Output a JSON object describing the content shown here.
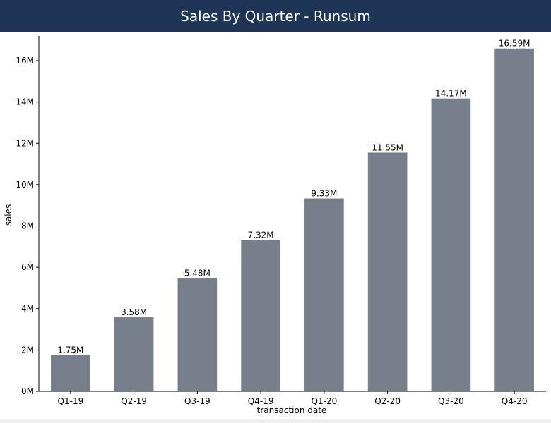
{
  "header": {
    "title": "Sales By Quarter - Runsum"
  },
  "colors": {
    "header_bg": "#1e3557",
    "bar": "#787f8c",
    "axis": "#000000"
  },
  "chart_data": {
    "type": "bar",
    "title": "Sales By Quarter - Runsum",
    "xlabel": "transaction date",
    "ylabel": "sales",
    "categories": [
      "Q1-19",
      "Q2-19",
      "Q3-19",
      "Q4-19",
      "Q1-20",
      "Q2-20",
      "Q3-20",
      "Q4-20"
    ],
    "values": [
      1.75,
      3.58,
      5.48,
      7.32,
      9.33,
      11.55,
      14.17,
      16.59
    ],
    "value_labels": [
      "1.75M",
      "3.58M",
      "5.48M",
      "7.32M",
      "9.33M",
      "11.55M",
      "14.17M",
      "16.59M"
    ],
    "yticks": [
      0,
      2,
      4,
      6,
      8,
      10,
      12,
      14,
      16
    ],
    "ytick_labels": [
      "0M",
      "2M",
      "4M",
      "6M",
      "8M",
      "10M",
      "12M",
      "14M",
      "16M"
    ],
    "ylim": [
      0,
      17.4
    ],
    "grid": false,
    "legend": "none"
  }
}
